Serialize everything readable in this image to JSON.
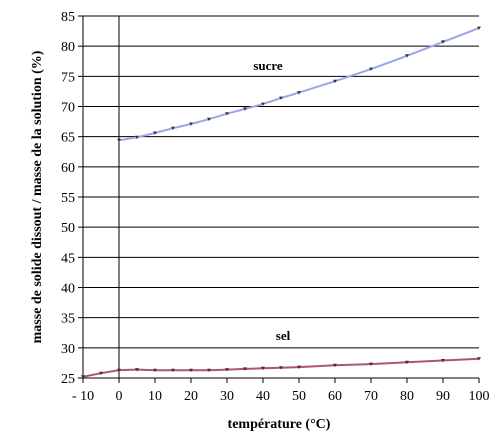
{
  "chart_data": {
    "type": "line",
    "title": "",
    "xlabel": "température (°C)",
    "ylabel": "masse de solide dissout / masse de la solution (%)",
    "xlim": [
      -10,
      100
    ],
    "ylim": [
      25,
      85
    ],
    "x_ticks": [
      -10,
      0,
      10,
      20,
      30,
      40,
      50,
      60,
      70,
      80,
      90,
      100
    ],
    "x_tick_labels": [
      "- 10",
      "0",
      "10",
      "20",
      "30",
      "40",
      "50",
      "60",
      "70",
      "80",
      "90",
      "100"
    ],
    "y_ticks": [
      25,
      30,
      35,
      40,
      45,
      50,
      55,
      60,
      65,
      70,
      75,
      80,
      85
    ],
    "y_tick_labels": [
      "25",
      "30",
      "35",
      "40",
      "45",
      "50",
      "55",
      "60",
      "65",
      "70",
      "75",
      "80",
      "85"
    ],
    "grid": "horizontal",
    "series": [
      {
        "name": "sucre",
        "color": "#9aa6e6",
        "x": [
          0,
          5,
          10,
          15,
          20,
          25,
          30,
          35,
          40,
          45,
          50,
          60,
          70,
          80,
          90,
          100
        ],
        "values": [
          64.4,
          64.9,
          65.6,
          66.4,
          67.1,
          67.9,
          68.8,
          69.6,
          70.4,
          71.4,
          72.3,
          74.2,
          76.2,
          78.4,
          80.7,
          83.0
        ]
      },
      {
        "name": "sel",
        "color": "#b0517a",
        "x": [
          -10,
          -5,
          0,
          5,
          10,
          15,
          20,
          25,
          30,
          35,
          40,
          45,
          50,
          60,
          70,
          80,
          90,
          100
        ],
        "values": [
          25.2,
          25.8,
          26.3,
          26.4,
          26.3,
          26.3,
          26.3,
          26.3,
          26.4,
          26.5,
          26.6,
          26.7,
          26.8,
          27.1,
          27.3,
          27.6,
          27.9,
          28.2
        ]
      }
    ]
  }
}
